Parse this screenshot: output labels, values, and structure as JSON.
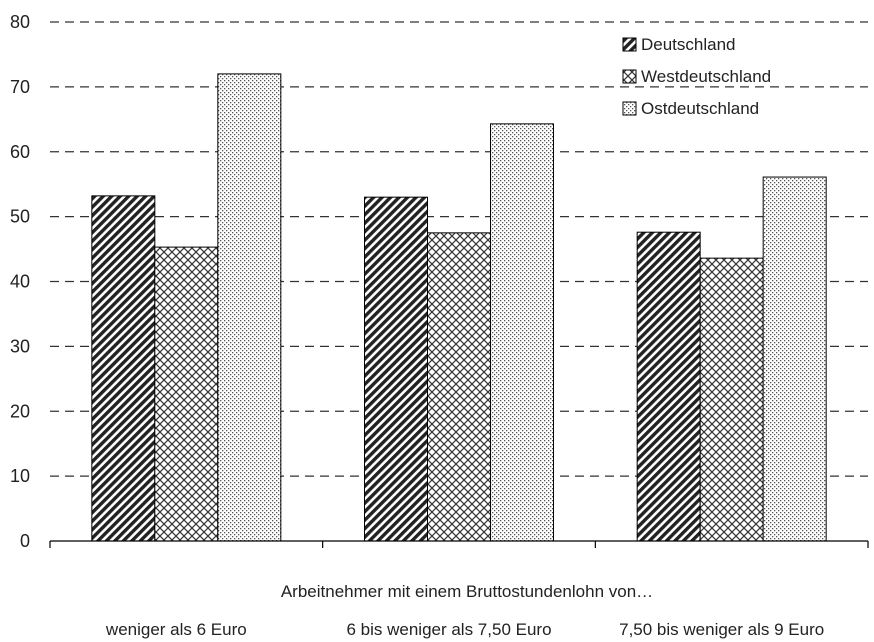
{
  "chart_data": {
    "type": "bar",
    "xlabel": "Arbeitnehmer mit einem Bruttostundenlohn von…",
    "ylabel": "",
    "ylim": [
      0,
      80
    ],
    "yticks": [
      0,
      10,
      20,
      30,
      40,
      50,
      60,
      70,
      80
    ],
    "grid": "horizontal dashed",
    "legend_position": "top-right",
    "categories": [
      "weniger als 6 Euro",
      "6 bis weniger als 7,50 Euro",
      "7,50 bis weniger als 9 Euro"
    ],
    "series": [
      {
        "name": "Deutschland",
        "values": [
          53.2,
          53.0,
          47.6
        ],
        "pattern": "diagonal-stripes",
        "color": "#222222"
      },
      {
        "name": "Westdeutschland",
        "values": [
          45.3,
          47.5,
          43.6
        ],
        "pattern": "crosshatch",
        "color": "#333333"
      },
      {
        "name": "Ostdeutschland",
        "values": [
          72.0,
          64.3,
          56.1
        ],
        "pattern": "dots",
        "color": "#555555"
      }
    ]
  }
}
